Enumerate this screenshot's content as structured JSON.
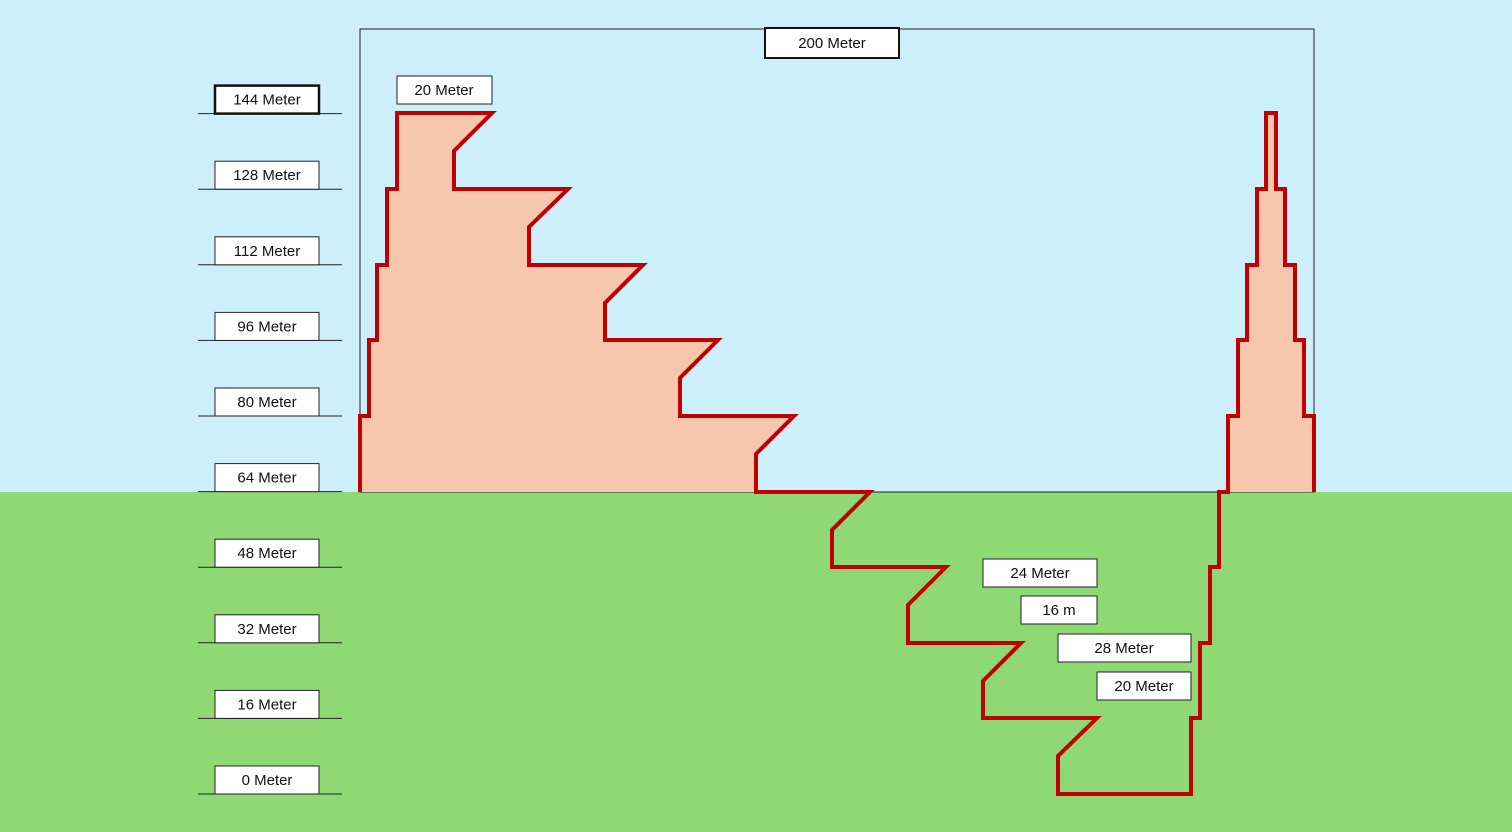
{
  "colors": {
    "sky": "#cdeefb",
    "ground": "#8fd975",
    "outline": "#c00000",
    "fill": "#f7c7ad",
    "box_border": "#222222",
    "label_bg": "#ffffff"
  },
  "scale_labels": [
    "0 Meter",
    "16 Meter",
    "32 Meter",
    "48 Meter",
    "64 Meter",
    "80 Meter",
    "96 Meter",
    "112 Meter",
    "128 Meter",
    "144 Meter"
  ],
  "dimension_labels": {
    "total_width": "200 Meter",
    "top_ledge": "20 Meter",
    "pit_a": "24 Meter",
    "pit_b": "16 m",
    "pit_c": "28 Meter",
    "pit_d": "20 Meter"
  }
}
